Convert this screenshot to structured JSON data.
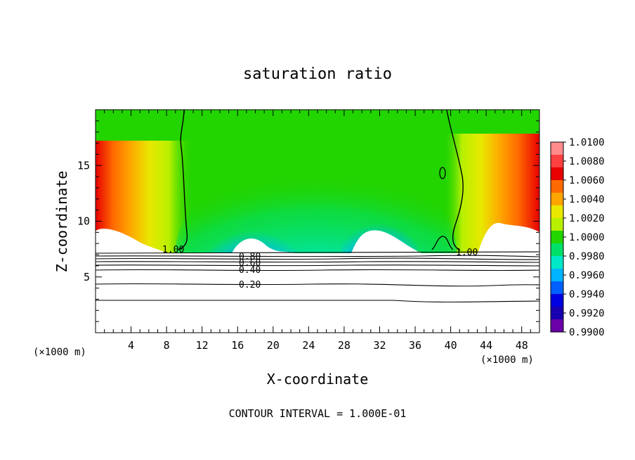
{
  "chart_data": {
    "type": "heatmap",
    "title": "saturation ratio",
    "xlabel": "X-coordinate",
    "ylabel": "Z-coordinate",
    "x_unit_label": "(×1000 m)",
    "x_unit_label_right": "(×1000 m)",
    "footer": "CONTOUR INTERVAL = 1.000E-01",
    "xlim": [
      0,
      50
    ],
    "ylim": [
      0,
      20
    ],
    "x_ticks": [
      4,
      8,
      12,
      16,
      20,
      24,
      28,
      32,
      36,
      40,
      44,
      48
    ],
    "y_ticks": [
      5,
      10,
      15
    ],
    "colorbar": {
      "levels": [
        "1.0100",
        "1.0080",
        "1.0060",
        "1.0040",
        "1.0020",
        "1.0000",
        "0.9980",
        "0.9960",
        "0.9940",
        "0.9920",
        "0.9900"
      ],
      "colors": [
        "#ff8c8c",
        "#ff4040",
        "#e80000",
        "#ff6a00",
        "#ffa500",
        "#e8e800",
        "#b8f000",
        "#22d400",
        "#00e068",
        "#00e8c8",
        "#00b4ff",
        "#0060ff",
        "#0000e0",
        "#1800b0",
        "#6a00a8"
      ]
    },
    "contour_labels": [
      {
        "text": "1.00",
        "x": 9.0,
        "z": 7.5
      },
      {
        "text": "1.00",
        "x": 42.5,
        "z": 7.3
      },
      {
        "text": "0.80",
        "x": 17.5,
        "z": 7.2
      },
      {
        "text": "0.60",
        "x": 17.5,
        "z": 6.6
      },
      {
        "text": "0.40",
        "x": 17.5,
        "z": 5.7
      },
      {
        "text": "0.20",
        "x": 17.5,
        "z": 4.2
      }
    ],
    "contour_levels": [
      0.2,
      0.4,
      0.6,
      0.8,
      1.0
    ]
  }
}
